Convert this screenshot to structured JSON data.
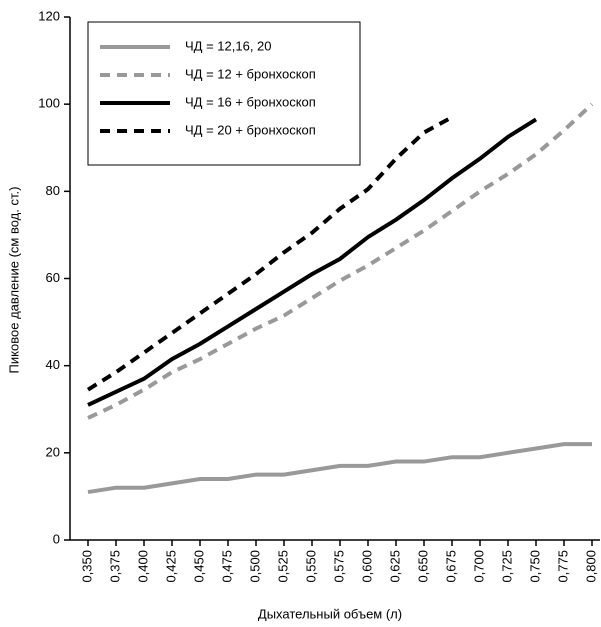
{
  "chart_data": {
    "type": "line",
    "x_label": "Дыхательный объем (л)",
    "y_label": "Пиковое давление (см вод. ст.)",
    "categories": [
      "0,350",
      "0,375",
      "0,400",
      "0,425",
      "0,450",
      "0,475",
      "0,500",
      "0,525",
      "0,550",
      "0,575",
      "0,600",
      "0,625",
      "0,650",
      "0,675",
      "0,700",
      "0,725",
      "0,750",
      "0,775",
      "0,800"
    ],
    "series": [
      {
        "name": "ЧД = 12,16, 20",
        "color": "#999999",
        "dash": false,
        "values": [
          11,
          12,
          12,
          13,
          14,
          14,
          15,
          15,
          16,
          17,
          17,
          18,
          18,
          19,
          19,
          20,
          21,
          22,
          22
        ]
      },
      {
        "name": "ЧД = 12 + бронхоскоп",
        "color": "#999999",
        "dash": true,
        "values": [
          28,
          31,
          34.5,
          38.5,
          41.5,
          45,
          48.5,
          51.5,
          55.5,
          59.5,
          63,
          67,
          71,
          75.5,
          80,
          84,
          88.5,
          94,
          100
        ]
      },
      {
        "name": "ЧД = 16 + бронхоскоп",
        "color": "#000000",
        "dash": false,
        "values": [
          31,
          34,
          37,
          41.5,
          45,
          49,
          53,
          57,
          61,
          64.5,
          69.5,
          73.5,
          78,
          83,
          87.5,
          92.5,
          96.5,
          null,
          null
        ]
      },
      {
        "name": "ЧД = 20 + бронхоскоп",
        "color": "#000000",
        "dash": true,
        "values": [
          34.5,
          38.5,
          43,
          47.5,
          52,
          56.5,
          61,
          66,
          70.5,
          76,
          80.5,
          87.5,
          93.5,
          97,
          null,
          null,
          null,
          null,
          null
        ]
      }
    ],
    "ylim": [
      0,
      120
    ],
    "yticks": [
      0,
      20,
      40,
      60,
      80,
      100,
      120
    ],
    "grid": false,
    "legend": "upper left"
  }
}
